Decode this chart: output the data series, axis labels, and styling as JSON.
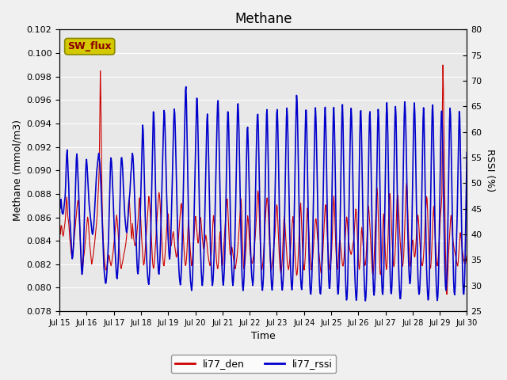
{
  "title": "Methane",
  "xlabel": "Time",
  "ylabel_left": "Methane (mmol/m3)",
  "ylabel_right": "RSSI (%)",
  "ylim_left": [
    0.078,
    0.102
  ],
  "ylim_right": [
    25,
    80
  ],
  "yticks_left": [
    0.078,
    0.08,
    0.082,
    0.084,
    0.086,
    0.088,
    0.09,
    0.092,
    0.094,
    0.096,
    0.098,
    0.1,
    0.102
  ],
  "yticks_right": [
    25,
    30,
    35,
    40,
    45,
    50,
    55,
    60,
    65,
    70,
    75,
    80
  ],
  "xtick_labels": [
    "Jul 15",
    "Jul 16",
    "Jul 17",
    "Jul 18",
    "Jul 19",
    "Jul 20",
    "Jul 21",
    "Jul 22",
    "Jul 23",
    "Jul 24",
    "Jul 25",
    "Jul 26",
    "Jul 27",
    "Jul 28",
    "Jul 29",
    "Jul 30"
  ],
  "bg_color": "#e8e8e8",
  "line_color_red": "#cc0000",
  "line_color_blue": "#0000cc",
  "legend_label_red": "li77_den",
  "legend_label_blue": "li77_rssi",
  "sw_flux_label": "SW_flux",
  "sw_flux_bg": "#d4c800",
  "sw_flux_fg": "#8b0000",
  "red_data": [
    0.0853,
    0.085,
    0.0845,
    0.0855,
    0.0852,
    0.0848,
    0.0845,
    0.0843,
    0.0848,
    0.0852,
    0.0855,
    0.086,
    0.087,
    0.0878,
    0.0872,
    0.0862,
    0.0858,
    0.0855,
    0.0848,
    0.084,
    0.0838,
    0.0832,
    0.0828,
    0.0825,
    0.0828,
    0.0832,
    0.0836,
    0.0842,
    0.0848,
    0.0852,
    0.0858,
    0.0862,
    0.0868,
    0.0872,
    0.0875,
    0.0872,
    0.0862,
    0.0852,
    0.0842,
    0.0832,
    0.0828,
    0.082,
    0.0815,
    0.082,
    0.0825,
    0.0828,
    0.0832,
    0.0838,
    0.0842,
    0.0848,
    0.0852,
    0.0858,
    0.0862,
    0.0855,
    0.0848,
    0.084,
    0.0835,
    0.083,
    0.0825,
    0.082,
    0.0822,
    0.0825,
    0.0828,
    0.0832,
    0.0836,
    0.084,
    0.0845,
    0.085,
    0.0855,
    0.086,
    0.087,
    0.088,
    0.089,
    0.09,
    0.094,
    0.0985,
    0.096,
    0.092,
    0.088,
    0.0858,
    0.0845,
    0.0835,
    0.0828,
    0.0822,
    0.0818,
    0.0815,
    0.0815,
    0.0818,
    0.082,
    0.0822,
    0.0825,
    0.0828,
    0.0825,
    0.0822,
    0.082,
    0.0818,
    0.0822,
    0.0825,
    0.0828,
    0.0832,
    0.0838,
    0.0842,
    0.0848,
    0.0852,
    0.0858,
    0.0862,
    0.0858,
    0.0852,
    0.0845,
    0.0838,
    0.0832,
    0.0825,
    0.082,
    0.0815,
    0.0818,
    0.082,
    0.0822,
    0.0825,
    0.0828,
    0.083,
    0.0832,
    0.0835,
    0.0838,
    0.0842,
    0.0848,
    0.0855,
    0.0862,
    0.087,
    0.0878,
    0.087,
    0.086,
    0.0852,
    0.0845,
    0.084,
    0.0855,
    0.085,
    0.0845,
    0.084,
    0.0838,
    0.0835,
    0.0838,
    0.084,
    0.0845,
    0.085,
    0.0855,
    0.0862,
    0.087,
    0.0878,
    0.087,
    0.0862,
    0.0852,
    0.0842,
    0.0835,
    0.0828,
    0.0822,
    0.0818,
    0.0822,
    0.0828,
    0.0835,
    0.0842,
    0.0848,
    0.0855,
    0.0862,
    0.087,
    0.0878,
    0.0875,
    0.087,
    0.0862,
    0.0852,
    0.0842,
    0.0832,
    0.0822,
    0.0818,
    0.0815,
    0.082,
    0.0825,
    0.0832,
    0.084,
    0.085,
    0.0858,
    0.0865,
    0.0872,
    0.0878,
    0.0882,
    0.0878,
    0.0872,
    0.0862,
    0.0852,
    0.0842,
    0.0832,
    0.0825,
    0.082,
    0.0818,
    0.0822,
    0.0828,
    0.0835,
    0.0842,
    0.085,
    0.0858,
    0.0865,
    0.0862,
    0.0855,
    0.0848,
    0.0842,
    0.0838,
    0.0835,
    0.0838,
    0.0842,
    0.0845,
    0.0848,
    0.0845,
    0.084,
    0.0835,
    0.0832,
    0.0828,
    0.0825,
    0.0828,
    0.0832,
    0.0838,
    0.0845,
    0.0852,
    0.0858,
    0.0865,
    0.087,
    0.0872,
    0.0868,
    0.086,
    0.085,
    0.084,
    0.0832,
    0.0825,
    0.082,
    0.0818,
    0.0822,
    0.0828,
    0.0838,
    0.0848,
    0.0858,
    0.085,
    0.0842,
    0.0835,
    0.0828,
    0.0822,
    0.0818,
    0.0822,
    0.0828,
    0.0835,
    0.0842,
    0.085,
    0.0858,
    0.0862,
    0.0858,
    0.0852,
    0.0845,
    0.084,
    0.0838,
    0.0842,
    0.0848,
    0.0855,
    0.0862,
    0.0858,
    0.0852,
    0.0845,
    0.084,
    0.0836,
    0.0832,
    0.0835,
    0.0838,
    0.0842,
    0.0845,
    0.0842,
    0.0838,
    0.0832,
    0.0828,
    0.0825,
    0.0822,
    0.082,
    0.0818,
    0.0822,
    0.0828,
    0.0835,
    0.0845,
    0.0855,
    0.0862,
    0.0858,
    0.0852,
    0.0845,
    0.0835,
    0.0828,
    0.082,
    0.0818,
    0.0815,
    0.082,
    0.0828,
    0.084,
    0.085,
    0.0842,
    0.0832,
    0.0822,
    0.0818,
    0.082,
    0.0828,
    0.0835,
    0.0842,
    0.0848,
    0.0855,
    0.0862,
    0.087,
    0.0878,
    0.0872,
    0.0862,
    0.085,
    0.084,
    0.0832,
    0.0828,
    0.083,
    0.0832,
    0.0835,
    0.0832,
    0.0828,
    0.0825,
    0.082,
    0.0818,
    0.0815,
    0.0818,
    0.0822,
    0.0825,
    0.083,
    0.0835,
    0.0842,
    0.0848,
    0.0855,
    0.0862,
    0.087,
    0.0878,
    0.0862,
    0.0845,
    0.0832,
    0.082,
    0.0815,
    0.0818,
    0.0822,
    0.0828,
    0.0835,
    0.0845,
    0.0855,
    0.0862,
    0.0858,
    0.085,
    0.084,
    0.0832,
    0.0828,
    0.0825,
    0.0822,
    0.082,
    0.0822,
    0.0825,
    0.0828,
    0.0832,
    0.0838,
    0.0845,
    0.0852,
    0.086,
    0.087,
    0.0878,
    0.0885,
    0.0878,
    0.0865,
    0.085,
    0.0838,
    0.0825,
    0.0818,
    0.0815,
    0.0818,
    0.0822,
    0.0828,
    0.0835,
    0.0845,
    0.0855,
    0.0862,
    0.087,
    0.0875,
    0.0878,
    0.0872,
    0.0862,
    0.085,
    0.0838,
    0.0828,
    0.082,
    0.0815,
    0.0818,
    0.0822,
    0.0825,
    0.083,
    0.0835,
    0.084,
    0.0845,
    0.0852,
    0.0862,
    0.087,
    0.0872,
    0.0862,
    0.085,
    0.0838,
    0.0828,
    0.082,
    0.0815,
    0.0812,
    0.0815,
    0.082,
    0.0828,
    0.084,
    0.0852,
    0.0862,
    0.0858,
    0.085,
    0.0842,
    0.0835,
    0.0828,
    0.082,
    0.0818,
    0.0815,
    0.0818,
    0.0822,
    0.0828,
    0.0835,
    0.0842,
    0.0848,
    0.0855,
    0.0862,
    0.0858,
    0.0848,
    0.0838,
    0.0828,
    0.082,
    0.0815,
    0.081,
    0.0812,
    0.0818,
    0.0828,
    0.0838,
    0.085,
    0.0862,
    0.0875,
    0.0868,
    0.0855,
    0.0842,
    0.0832,
    0.0822,
    0.0818,
    0.0815,
    0.082,
    0.0828,
    0.084,
    0.0855,
    0.0862,
    0.0872,
    0.0862,
    0.0852,
    0.0842,
    0.0832,
    0.0825,
    0.082,
    0.0815,
    0.0818,
    0.0822,
    0.0828,
    0.0835,
    0.0842,
    0.085,
    0.0855,
    0.086,
    0.0858,
    0.0852,
    0.0845,
    0.0838,
    0.0835,
    0.083,
    0.0825,
    0.082,
    0.0815,
    0.0812,
    0.0815,
    0.082,
    0.0828,
    0.0838,
    0.0848,
    0.0858,
    0.0865,
    0.0872,
    0.0868,
    0.0858,
    0.0848,
    0.084,
    0.0832,
    0.0825,
    0.0818,
    0.0815,
    0.0818,
    0.0822,
    0.0828,
    0.0838,
    0.085,
    0.0865,
    0.088,
    0.0875,
    0.0862,
    0.0848,
    0.0835,
    0.0825,
    0.0818,
    0.0815,
    0.0818,
    0.0825,
    0.0835,
    0.0842,
    0.084,
    0.0835,
    0.083,
    0.0825,
    0.082,
    0.0818,
    0.082,
    0.0825,
    0.0832,
    0.084,
    0.0848,
    0.0855,
    0.0862,
    0.0858,
    0.085,
    0.0842,
    0.0838,
    0.0835,
    0.0832,
    0.083,
    0.0828,
    0.083,
    0.0832,
    0.0835,
    0.0838,
    0.0842,
    0.0848,
    0.0855,
    0.0862,
    0.087,
    0.0862,
    0.0852,
    0.084,
    0.0828,
    0.082,
    0.0815,
    0.0818,
    0.0825,
    0.0835,
    0.0848,
    0.0852,
    0.0845,
    0.0838,
    0.083,
    0.0825,
    0.082,
    0.0818,
    0.0822,
    0.0828,
    0.084,
    0.0852,
    0.0862,
    0.087,
    0.0865,
    0.0858,
    0.085,
    0.084,
    0.083,
    0.0822,
    0.0815,
    0.081,
    0.0812,
    0.082,
    0.0832,
    0.0845,
    0.0858,
    0.087,
    0.0878,
    0.0885,
    0.0878,
    0.0862,
    0.0845,
    0.0828,
    0.0815,
    0.081,
    0.0812,
    0.0818,
    0.0828,
    0.0842,
    0.0858,
    0.0865,
    0.0855,
    0.0842,
    0.083,
    0.082,
    0.0815,
    0.0818,
    0.0828,
    0.0842,
    0.0858,
    0.0875,
    0.0882,
    0.0878,
    0.087,
    0.0858,
    0.0845,
    0.0835,
    0.0828,
    0.082,
    0.0818,
    0.0822,
    0.083,
    0.084,
    0.0855,
    0.087,
    0.0878,
    0.088,
    0.0872,
    0.0862,
    0.0852,
    0.0842,
    0.0835,
    0.0828,
    0.0822,
    0.082,
    0.0818,
    0.0822,
    0.0828,
    0.084,
    0.0855,
    0.087,
    0.0882,
    0.0892,
    0.0885,
    0.087,
    0.0855,
    0.0842,
    0.0832,
    0.0822,
    0.0818,
    0.0822,
    0.0828,
    0.0835,
    0.0842,
    0.084,
    0.0835,
    0.0828,
    0.0825,
    0.0828,
    0.0835,
    0.0842,
    0.085,
    0.0858,
    0.0862,
    0.0858,
    0.085,
    0.0842,
    0.0835,
    0.083,
    0.0825,
    0.082,
    0.0818,
    0.082,
    0.0825,
    0.0832,
    0.0842,
    0.0852,
    0.0862,
    0.087,
    0.0878,
    0.0875,
    0.0862,
    0.0848,
    0.0835,
    0.0825,
    0.0818,
    0.0815,
    0.082,
    0.0828,
    0.084,
    0.0852,
    0.0862,
    0.087,
    0.0862,
    0.0852,
    0.084,
    0.0832,
    0.0825,
    0.082,
    0.0818,
    0.0822,
    0.083,
    0.084,
    0.085,
    0.0858,
    0.0865,
    0.087,
    0.0875,
    0.0955,
    0.0992,
    0.0965,
    0.093,
    0.089,
    0.085,
    0.082,
    0.08,
    0.079,
    0.08,
    0.0812,
    0.0825,
    0.0835,
    0.0842,
    0.085,
    0.0858,
    0.0862,
    0.0858,
    0.085,
    0.0842,
    0.0838,
    0.0835,
    0.0832,
    0.083,
    0.0828,
    0.0825,
    0.0822,
    0.082,
    0.0818,
    0.0822,
    0.0828,
    0.0835,
    0.0842,
    0.0848,
    0.0845,
    0.084,
    0.0835,
    0.083,
    0.0828,
    0.0825,
    0.0822,
    0.082,
    0.082,
    0.0822,
    0.0825,
    0.0828
  ],
  "blue_rssi": [
    45,
    45,
    46,
    47,
    45,
    44,
    44,
    44,
    45,
    46,
    47,
    48,
    52,
    55,
    57,
    55,
    52,
    50,
    46,
    43,
    42,
    40,
    38,
    36,
    35,
    36,
    38,
    40,
    43,
    46,
    50,
    54,
    56,
    55,
    52,
    50,
    47,
    44,
    41,
    38,
    35,
    33,
    32,
    33,
    35,
    38,
    42,
    46,
    50,
    53,
    55,
    54,
    52,
    50,
    48,
    46,
    45,
    44,
    43,
    42,
    41,
    40,
    40,
    41,
    42,
    44,
    46,
    48,
    50,
    52,
    53,
    54,
    55,
    56,
    55,
    54,
    52,
    50,
    47,
    44,
    41,
    38,
    35,
    33,
    32,
    31,
    30,
    31,
    32,
    34,
    36,
    38,
    42,
    46,
    50,
    54,
    55,
    54,
    52,
    49,
    47,
    44,
    41,
    38,
    36,
    34,
    32,
    31,
    32,
    34,
    36,
    40,
    44,
    48,
    52,
    55,
    55,
    54,
    52,
    49,
    47,
    45,
    43,
    42,
    41,
    40,
    41,
    42,
    44,
    46,
    47,
    48,
    50,
    52,
    53,
    55,
    56,
    55,
    53,
    50,
    47,
    44,
    41,
    38,
    35,
    33,
    32,
    33,
    35,
    38,
    42,
    46,
    50,
    54,
    58,
    62,
    60,
    56,
    51,
    46,
    42,
    39,
    36,
    34,
    32,
    31,
    30,
    31,
    33,
    36,
    40,
    45,
    50,
    55,
    60,
    65,
    63,
    59,
    54,
    48,
    43,
    40,
    37,
    35,
    33,
    32,
    33,
    35,
    38,
    42,
    46,
    50,
    54,
    58,
    62,
    65,
    63,
    59,
    55,
    50,
    46,
    43,
    40,
    38,
    36,
    35,
    36,
    38,
    42,
    46,
    50,
    55,
    59,
    63,
    65,
    63,
    59,
    54,
    49,
    44,
    40,
    37,
    34,
    32,
    31,
    30,
    31,
    33,
    36,
    40,
    45,
    50,
    55,
    60,
    65,
    70,
    68,
    63,
    57,
    51,
    45,
    40,
    36,
    33,
    31,
    30,
    29,
    30,
    32,
    36,
    40,
    45,
    50,
    55,
    60,
    65,
    68,
    65,
    60,
    54,
    48,
    43,
    39,
    36,
    33,
    31,
    30,
    31,
    33,
    36,
    40,
    45,
    50,
    55,
    60,
    64,
    63,
    59,
    54,
    48,
    42,
    38,
    35,
    33,
    31,
    30,
    31,
    33,
    36,
    40,
    45,
    50,
    55,
    60,
    64,
    67,
    65,
    60,
    54,
    48,
    43,
    39,
    36,
    33,
    31,
    30,
    31,
    33,
    36,
    40,
    46,
    52,
    58,
    63,
    65,
    62,
    57,
    51,
    45,
    40,
    36,
    33,
    31,
    30,
    31,
    33,
    36,
    40,
    45,
    50,
    56,
    62,
    66,
    65,
    62,
    57,
    51,
    45,
    40,
    36,
    32,
    30,
    29,
    30,
    32,
    36,
    41,
    47,
    53,
    58,
    62,
    60,
    56,
    51,
    46,
    41,
    37,
    34,
    32,
    31,
    30,
    31,
    33,
    37,
    42,
    47,
    53,
    58,
    62,
    64,
    63,
    58,
    52,
    46,
    40,
    36,
    32,
    30,
    29,
    30,
    32,
    36,
    41,
    47,
    54,
    60,
    65,
    64,
    59,
    53,
    47,
    42,
    38,
    35,
    32,
    30,
    29,
    30,
    32,
    36,
    40,
    45,
    50,
    56,
    61,
    65,
    64,
    60,
    54,
    48,
    43,
    38,
    35,
    32,
    30,
    29,
    30,
    32,
    36,
    41,
    47,
    53,
    59,
    64,
    65,
    62,
    57,
    51,
    45,
    40,
    35,
    32,
    30,
    29,
    30,
    33,
    37,
    42,
    48,
    54,
    60,
    65,
    68,
    65,
    60,
    54,
    47,
    41,
    36,
    32,
    30,
    29,
    30,
    33,
    38,
    44,
    50,
    56,
    61,
    65,
    64,
    59,
    53,
    46,
    40,
    35,
    31,
    29,
    28,
    29,
    31,
    35,
    40,
    46,
    52,
    58,
    63,
    65,
    62,
    57,
    51,
    45,
    40,
    35,
    31,
    29,
    28,
    29,
    31,
    35,
    40,
    46,
    52,
    58,
    63,
    65,
    62,
    57,
    50,
    43,
    37,
    33,
    30,
    29,
    30,
    33,
    37,
    43,
    50,
    57,
    63,
    65,
    62,
    57,
    50,
    43,
    37,
    32,
    29,
    28,
    29,
    32,
    37,
    43,
    50,
    57,
    63,
    66,
    63,
    57,
    50,
    43,
    36,
    31,
    28,
    27,
    28,
    31,
    36,
    42,
    49,
    55,
    61,
    65,
    64,
    60,
    54,
    48,
    42,
    37,
    33,
    30,
    28,
    27,
    28,
    31,
    36,
    42,
    49,
    56,
    62,
    65,
    63,
    58,
    51,
    45,
    39,
    34,
    30,
    28,
    27,
    28,
    31,
    35,
    41,
    48,
    55,
    61,
    65,
    63,
    57,
    50,
    43,
    37,
    32,
    29,
    28,
    29,
    32,
    37,
    43,
    50,
    57,
    63,
    65,
    62,
    56,
    49,
    43,
    37,
    32,
    29,
    28,
    29,
    32,
    37,
    44,
    51,
    58,
    64,
    66,
    63,
    58,
    51,
    44,
    37,
    32,
    29,
    28,
    29,
    32,
    37,
    44,
    50,
    57,
    63,
    65,
    63,
    57,
    50,
    43,
    38,
    33,
    30,
    28,
    27,
    28,
    31,
    36,
    42,
    49,
    56,
    62,
    66,
    65,
    62,
    57,
    51,
    45,
    40,
    36,
    33,
    31,
    30,
    31,
    34,
    38,
    44,
    51,
    57,
    63,
    66,
    64,
    59,
    52,
    46,
    40,
    35,
    31,
    29,
    28,
    29,
    31,
    35,
    41,
    48,
    55,
    61,
    65,
    64,
    58,
    51,
    44,
    38,
    33,
    30,
    28,
    27,
    28,
    31,
    36,
    43,
    50,
    57,
    63,
    66,
    64,
    58,
    51,
    45,
    39,
    34,
    30,
    28,
    27,
    28,
    31,
    36,
    43,
    50,
    57,
    63,
    65,
    63,
    57,
    50,
    43,
    38,
    33,
    30,
    29,
    30,
    33,
    38,
    44,
    51,
    58,
    64,
    65,
    62,
    56,
    49,
    43,
    37,
    32,
    29,
    28,
    29,
    32,
    36,
    40,
    44,
    50,
    55,
    61,
    65,
    62,
    56,
    49,
    42,
    37,
    32,
    29,
    28,
    29,
    32,
    37,
    43,
    50,
    56
  ]
}
